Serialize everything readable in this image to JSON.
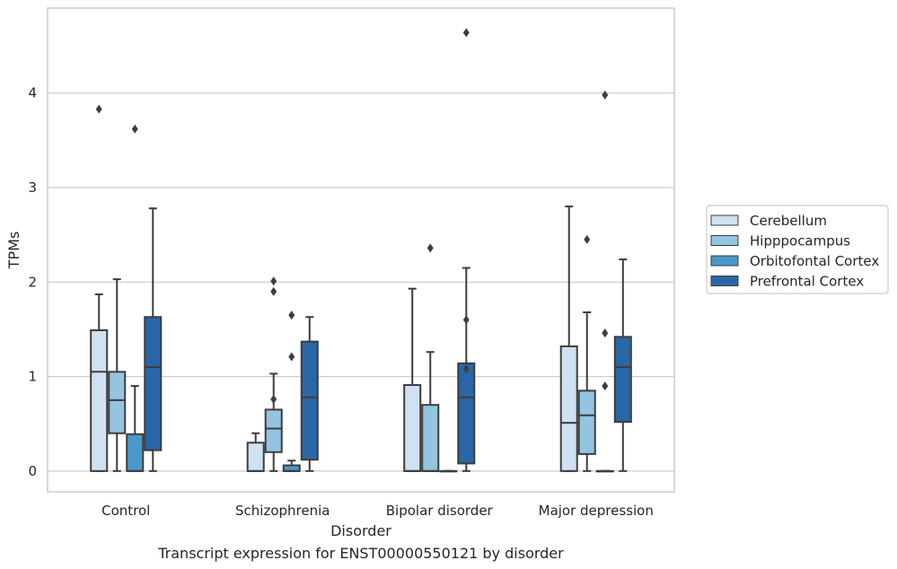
{
  "chart_data": {
    "type": "box",
    "caption": "Transcript expression for ENST00000550121 by disorder",
    "xlabel": "Disorder",
    "ylabel": "TPMs",
    "ylim": [
      -0.22,
      4.9
    ],
    "yticks": [
      0,
      1,
      2,
      3,
      4
    ],
    "grid": "horizontal",
    "legend_position": "right",
    "categories": [
      "Control",
      "Schizophrenia",
      "Bipolar disorder",
      "Major depression"
    ],
    "series": [
      {
        "name": "Cerebellum",
        "color": "#d0e1f2",
        "boxes": [
          {
            "whisker_low": 0,
            "q1": 0,
            "median": 1.05,
            "q3": 1.49,
            "whisker_high": 1.87,
            "outliers": [
              3.83
            ]
          },
          {
            "whisker_low": 0,
            "q1": 0,
            "median": 0,
            "q3": 0.3,
            "whisker_high": 0.4,
            "outliers": []
          },
          {
            "whisker_low": 0,
            "q1": 0,
            "median": 0,
            "q3": 0.91,
            "whisker_high": 1.93,
            "outliers": []
          },
          {
            "whisker_low": 0,
            "q1": 0,
            "median": 0.51,
            "q3": 1.32,
            "whisker_high": 2.8,
            "outliers": []
          }
        ]
      },
      {
        "name": "Hipppocampus",
        "color": "#94c4df",
        "boxes": [
          {
            "whisker_low": 0,
            "q1": 0.4,
            "median": 0.75,
            "q3": 1.05,
            "whisker_high": 2.03,
            "outliers": []
          },
          {
            "whisker_low": 0,
            "q1": 0.2,
            "median": 0.45,
            "q3": 0.65,
            "whisker_high": 1.03,
            "outliers": [
              0.76,
              1.9,
              2.01
            ]
          },
          {
            "whisker_low": 0,
            "q1": 0,
            "median": 0,
            "q3": 0.7,
            "whisker_high": 1.26,
            "outliers": [
              2.36
            ]
          },
          {
            "whisker_low": 0,
            "q1": 0.18,
            "median": 0.59,
            "q3": 0.85,
            "whisker_high": 1.68,
            "outliers": [
              2.45
            ]
          }
        ]
      },
      {
        "name": "Orbitofontal Cortex",
        "color": "#4a98c9",
        "boxes": [
          {
            "whisker_low": 0,
            "q1": 0,
            "median": 0,
            "q3": 0.39,
            "whisker_high": 0.9,
            "outliers": [
              3.62
            ]
          },
          {
            "whisker_low": 0,
            "q1": 0,
            "median": 0,
            "q3": 0.06,
            "whisker_high": 0.11,
            "outliers": [
              1.21,
              1.65
            ]
          },
          {
            "whisker_low": 0,
            "q1": 0,
            "median": 0,
            "q3": 0,
            "whisker_high": 0,
            "outliers": []
          },
          {
            "whisker_low": 0,
            "q1": 0,
            "median": 0,
            "q3": 0,
            "whisker_high": 0,
            "outliers": [
              0.9,
              1.46,
              3.98
            ]
          }
        ]
      },
      {
        "name": "Prefrontal Cortex",
        "color": "#2966a8",
        "boxes": [
          {
            "whisker_low": 0,
            "q1": 0.22,
            "median": 1.1,
            "q3": 1.63,
            "whisker_high": 2.78,
            "outliers": []
          },
          {
            "whisker_low": 0,
            "q1": 0.12,
            "median": 0.78,
            "q3": 1.37,
            "whisker_high": 1.63,
            "outliers": []
          },
          {
            "whisker_low": 0,
            "q1": 0.08,
            "median": 0.78,
            "q3": 1.14,
            "whisker_high": 2.15,
            "outliers": [
              1.08,
              1.6,
              4.64
            ]
          },
          {
            "whisker_low": 0,
            "q1": 0.52,
            "median": 1.1,
            "q3": 1.42,
            "whisker_high": 2.24,
            "outliers": []
          }
        ]
      }
    ]
  }
}
